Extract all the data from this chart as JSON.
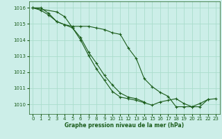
{
  "background_color": "#cceee8",
  "grid_color": "#aaddcc",
  "line_color": "#1a5c1a",
  "xlabel": "Graphe pression niveau de la mer (hPa)",
  "xlabel_color": "#1a5c1a",
  "xlim": [
    -0.5,
    23.5
  ],
  "ylim": [
    1009.4,
    1016.4
  ],
  "yticks": [
    1010,
    1011,
    1012,
    1013,
    1014,
    1015,
    1016
  ],
  "xticks": [
    0,
    1,
    2,
    3,
    4,
    5,
    6,
    7,
    8,
    9,
    10,
    11,
    12,
    13,
    14,
    15,
    16,
    17,
    18,
    19,
    20,
    21,
    22,
    23
  ],
  "series": [
    [
      1016.0,
      1015.85,
      1015.55,
      1015.15,
      1014.95,
      1014.85,
      1014.85,
      1014.85,
      1014.75,
      1014.65,
      1014.45,
      1014.35,
      1013.5,
      1012.85,
      1011.6,
      1011.1,
      1010.75,
      1010.5,
      1009.85,
      1009.85,
      1009.85,
      1010.05,
      1010.3,
      null
    ],
    [
      1016.0,
      1016.0,
      1015.65,
      1015.15,
      1014.95,
      1014.75,
      1014.15,
      1013.25,
      1012.55,
      1011.8,
      1011.2,
      1010.7,
      1010.45,
      1010.35,
      1010.15,
      null,
      null,
      null,
      null,
      null,
      null,
      null,
      null,
      null
    ],
    [
      1016.0,
      null,
      null,
      1015.75,
      1015.45,
      1014.75,
      1014.0,
      1013.05,
      1012.2,
      1011.5,
      1010.8,
      1010.45,
      1010.35,
      1010.25,
      1010.1,
      1009.95,
      1010.15,
      1010.25,
      1010.35,
      1010.05,
      1009.85,
      1009.85,
      1010.3,
      1010.35
    ]
  ]
}
